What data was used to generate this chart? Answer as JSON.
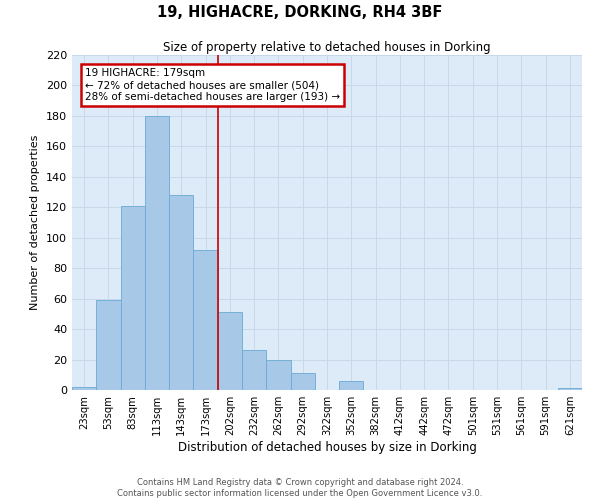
{
  "title": "19, HIGHACRE, DORKING, RH4 3BF",
  "subtitle": "Size of property relative to detached houses in Dorking",
  "xlabel": "Distribution of detached houses by size in Dorking",
  "ylabel": "Number of detached properties",
  "bin_labels": [
    "23sqm",
    "53sqm",
    "83sqm",
    "113sqm",
    "143sqm",
    "173sqm",
    "202sqm",
    "232sqm",
    "262sqm",
    "292sqm",
    "322sqm",
    "352sqm",
    "382sqm",
    "412sqm",
    "442sqm",
    "472sqm",
    "501sqm",
    "531sqm",
    "561sqm",
    "591sqm",
    "621sqm"
  ],
  "bar_values": [
    2,
    59,
    121,
    180,
    128,
    92,
    51,
    26,
    20,
    11,
    0,
    6,
    0,
    0,
    0,
    0,
    0,
    0,
    0,
    0,
    1
  ],
  "bar_color": "#a8c8e8",
  "bar_edge_color": "#6aaad4",
  "ylim": [
    0,
    220
  ],
  "yticks": [
    0,
    20,
    40,
    60,
    80,
    100,
    120,
    140,
    160,
    180,
    200,
    220
  ],
  "annotation_title": "19 HIGHACRE: 179sqm",
  "annotation_line1": "← 72% of detached houses are smaller (504)",
  "annotation_line2": "28% of semi-detached houses are larger (193) →",
  "annotation_box_color": "#ffffff",
  "annotation_box_edge_color": "#cc0000",
  "vline_color": "#cc0000",
  "grid_color": "#c8d8e8",
  "background_color": "#ddeaf7",
  "fig_background": "#ffffff",
  "footer_line1": "Contains HM Land Registry data © Crown copyright and database right 2024.",
  "footer_line2": "Contains public sector information licensed under the Open Government Licence v3.0."
}
